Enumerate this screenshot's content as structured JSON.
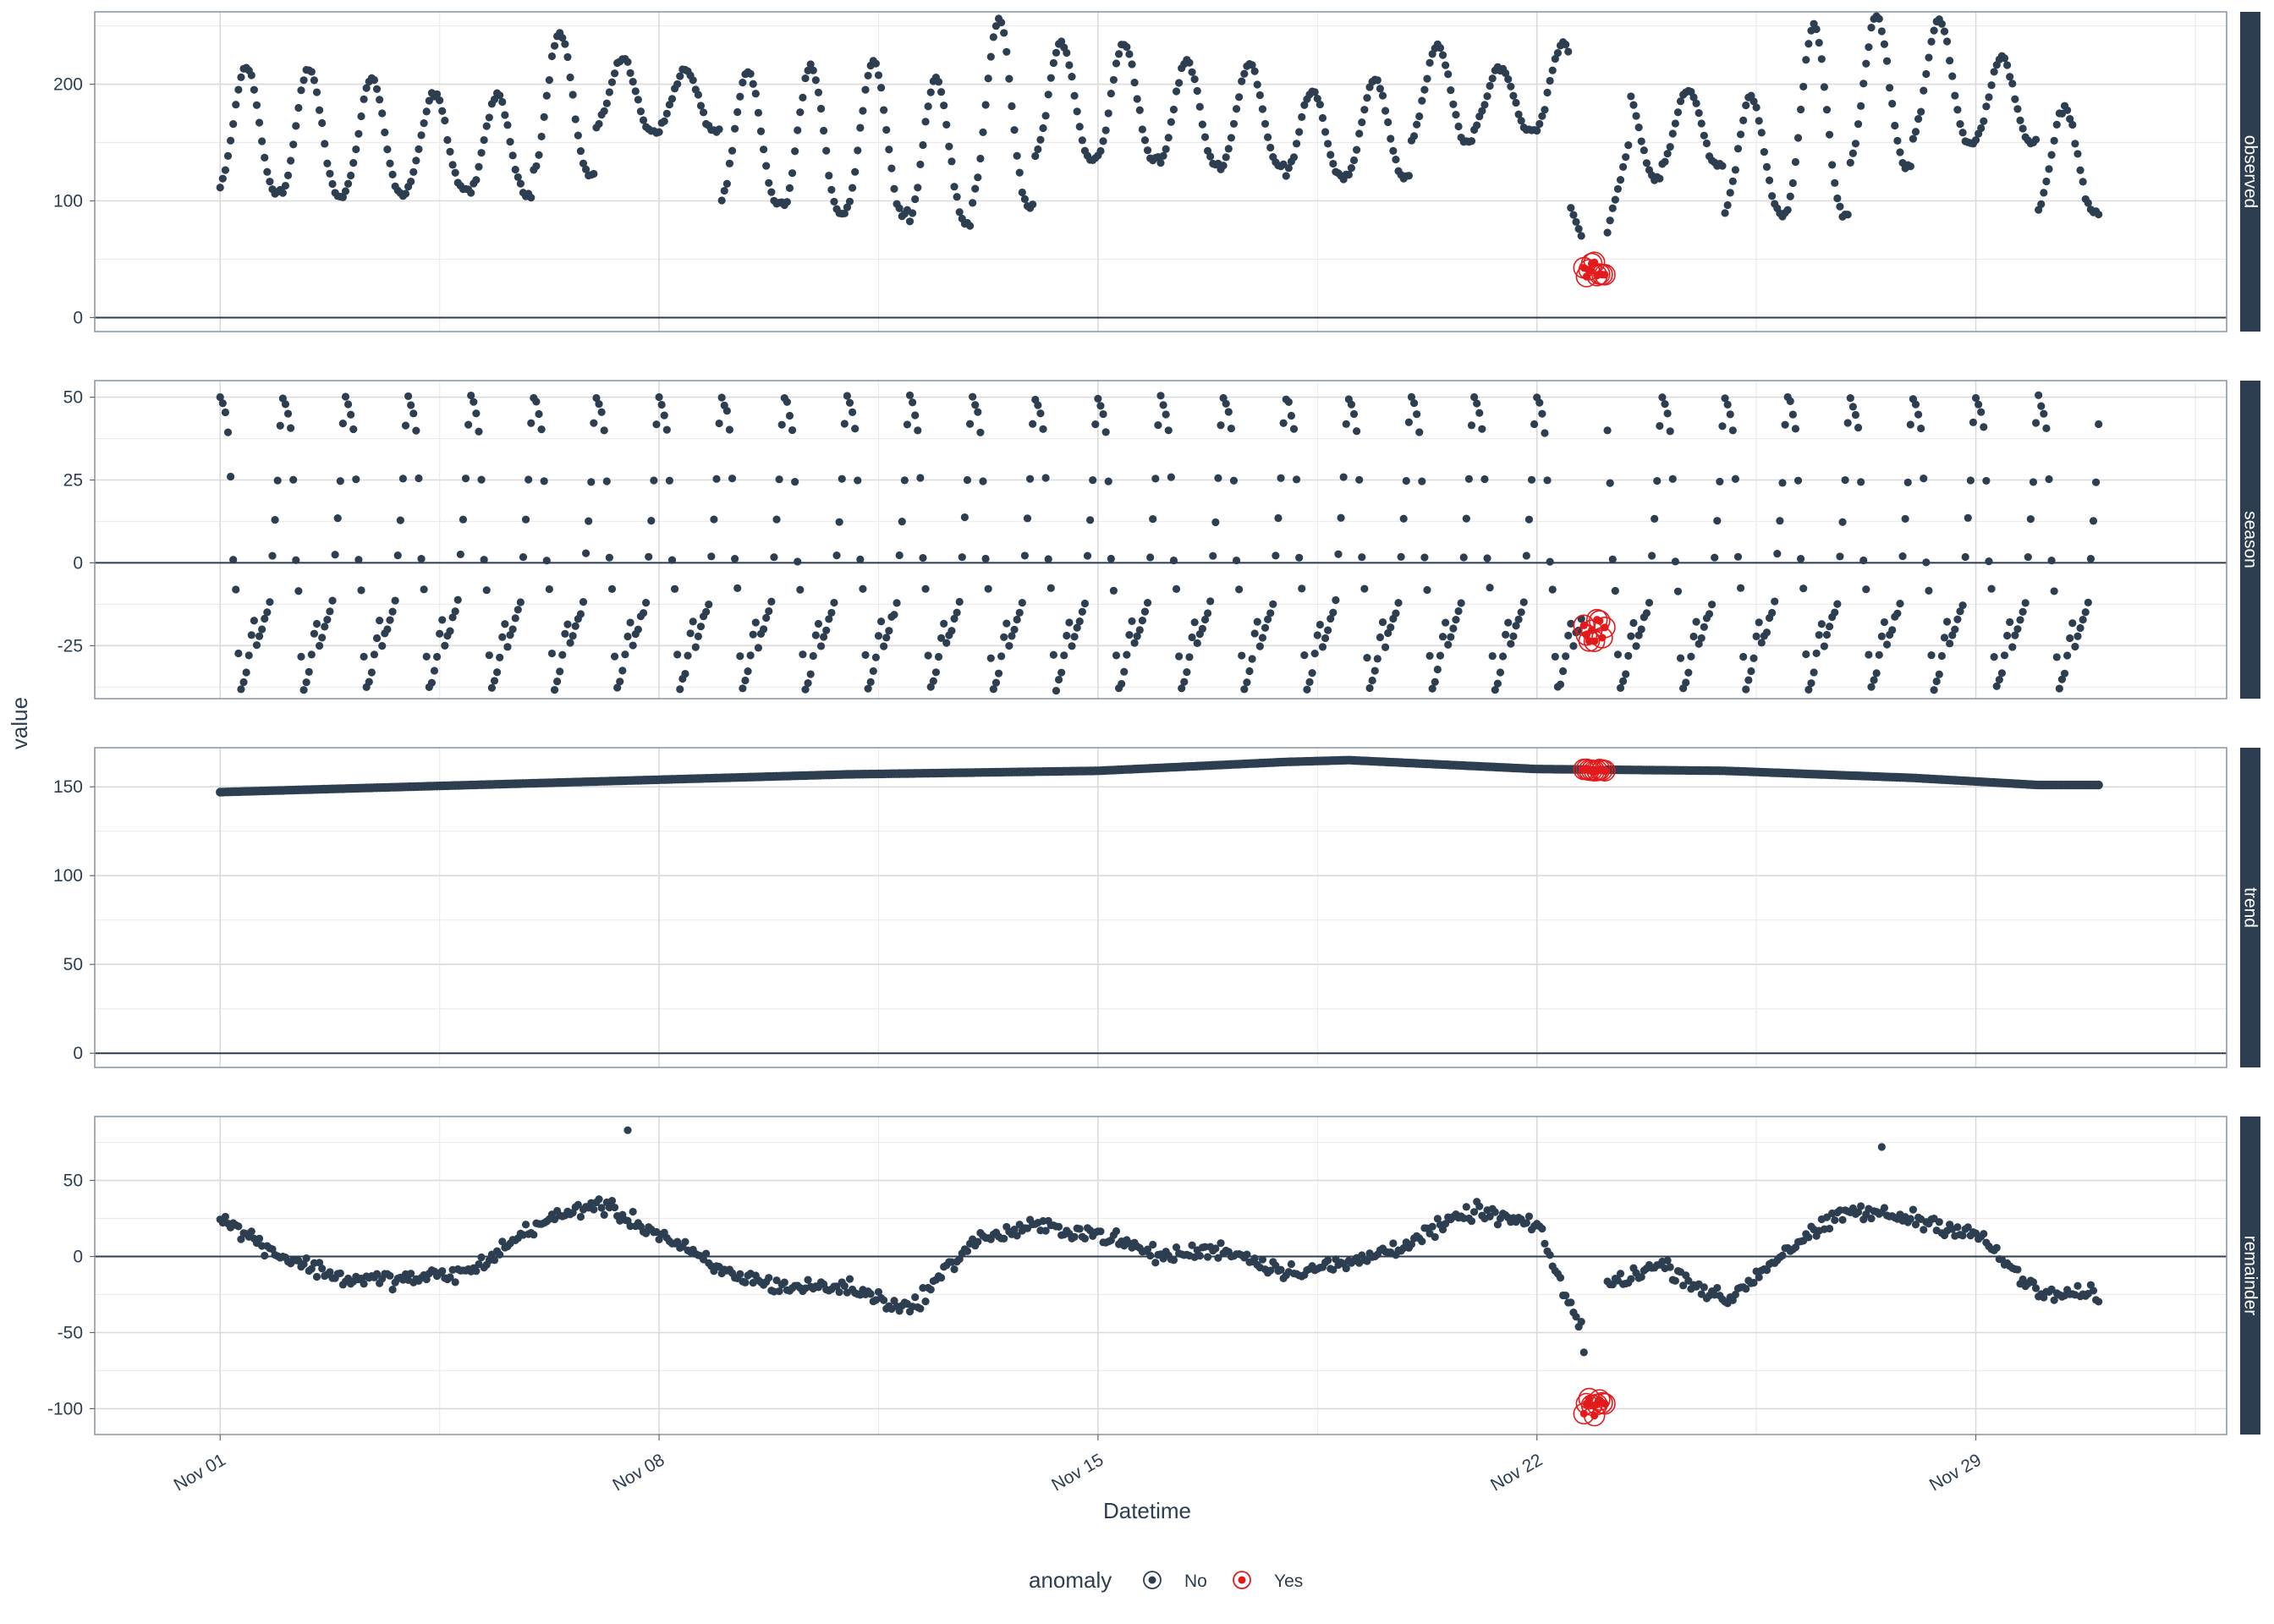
{
  "chart_data": {
    "type": "scatter",
    "layout": "faceted vertical panels sharing x axis",
    "xlabel": "Datetime",
    "ylabel": "value",
    "xlim": [
      "2021-10-30",
      "2021-12-03"
    ],
    "x_ticks": [
      {
        "value": "2021-11-01",
        "label": "Nov 01"
      },
      {
        "value": "2021-11-08",
        "label": "Nov 08"
      },
      {
        "value": "2021-11-15",
        "label": "Nov 15"
      },
      {
        "value": "2021-11-22",
        "label": "Nov 22"
      },
      {
        "value": "2021-11-29",
        "label": "Nov 29"
      }
    ],
    "x_data_range": [
      "2021-11-01T00:00",
      "2021-11-30T23:00"
    ],
    "sampling": "hourly",
    "anomaly_window": [
      "2021-11-22T18:00",
      "2021-11-23T02:00"
    ],
    "legend": {
      "title": "anomaly",
      "position": "bottom",
      "entries": [
        {
          "label": "No",
          "color": "#2c3e50"
        },
        {
          "label": "Yes",
          "color": "#e31a1c"
        }
      ]
    },
    "panels": [
      {
        "name": "observed",
        "ylim": [
          -12,
          262
        ],
        "y_ticks": [
          0,
          100,
          200
        ],
        "key_points": [
          {
            "x": "2021-11-01T02:00",
            "y": 215
          },
          {
            "x": "2021-11-01T12:00",
            "y": 108
          },
          {
            "x": "2021-11-02T18:00",
            "y": 213
          },
          {
            "x": "2021-11-03T06:00",
            "y": 110
          },
          {
            "x": "2021-11-06T12:00",
            "y": 245
          },
          {
            "x": "2021-11-08T06:00",
            "y": 212
          },
          {
            "x": "2021-11-10T18:00",
            "y": 90
          },
          {
            "x": "2021-11-12T18:00",
            "y": 80
          },
          {
            "x": "2021-11-13T12:00",
            "y": 255
          },
          {
            "x": "2021-11-15T18:00",
            "y": 235
          },
          {
            "x": "2021-11-22T12:00",
            "y": 236
          },
          {
            "x": "2021-11-22T16:00",
            "y": 70
          },
          {
            "x": "2021-11-22T21:00",
            "y": 40
          },
          {
            "x": "2021-11-25T18:00",
            "y": 88
          },
          {
            "x": "2021-11-27T02:00",
            "y": 258
          },
          {
            "x": "2021-11-29T12:00",
            "y": 222
          },
          {
            "x": "2021-11-30T12:00",
            "y": 90
          },
          {
            "x": "2021-11-30T23:00",
            "y": 165
          }
        ],
        "daily_peak": [
          215,
          213,
          205,
          192,
          190,
          245,
          222,
          212,
          210,
          215,
          220,
          205,
          255,
          236,
          235,
          220,
          218,
          195,
          205,
          232,
          215,
          236,
          198,
          195,
          190,
          250,
          258,
          255,
          222,
          180
        ],
        "daily_trough": [
          108,
          104,
          105,
          110,
          105,
          122,
          160,
          160,
          98,
          90,
          90,
          80,
          95,
          135,
          135,
          130,
          130,
          120,
          120,
          150,
          160,
          160,
          120,
          130,
          88,
          88,
          130,
          150,
          150,
          90
        ],
        "anomaly_y": [
          35,
          48
        ]
      },
      {
        "name": "season",
        "ylim": [
          -41,
          55
        ],
        "y_ticks": [
          -25,
          0,
          25,
          50
        ],
        "period": "24 hours",
        "cycle_values": [
          50,
          48,
          45,
          40,
          25,
          1,
          -8,
          -28,
          -38,
          -36,
          -33,
          -28,
          -22,
          -18,
          -25,
          -22,
          -20,
          -17,
          -15,
          -12,
          2,
          13,
          25,
          42
        ],
        "anomaly_y": [
          -25,
          -17
        ]
      },
      {
        "name": "trend",
        "ylim": [
          -8,
          172
        ],
        "y_ticks": [
          0,
          50,
          100,
          150
        ],
        "points": [
          {
            "x": "2021-11-01",
            "y": 147
          },
          {
            "x": "2021-11-08",
            "y": 154
          },
          {
            "x": "2021-11-11",
            "y": 157
          },
          {
            "x": "2021-11-15",
            "y": 159
          },
          {
            "x": "2021-11-18",
            "y": 164
          },
          {
            "x": "2021-11-19",
            "y": 165
          },
          {
            "x": "2021-11-22",
            "y": 160
          },
          {
            "x": "2021-11-25",
            "y": 159
          },
          {
            "x": "2021-11-28",
            "y": 155
          },
          {
            "x": "2021-11-30",
            "y": 151
          }
        ],
        "anomaly_y": [
          159,
          160
        ]
      },
      {
        "name": "remainder",
        "ylim": [
          -117,
          92
        ],
        "y_ticks": [
          -100,
          -50,
          0,
          50
        ],
        "level_points": [
          {
            "x": "2021-11-01",
            "y": 25
          },
          {
            "x": "2021-11-02",
            "y": 0
          },
          {
            "x": "2021-11-03",
            "y": -15
          },
          {
            "x": "2021-11-04",
            "y": -15
          },
          {
            "x": "2021-11-05",
            "y": -10
          },
          {
            "x": "2021-11-06",
            "y": 20
          },
          {
            "x": "2021-11-07",
            "y": 35
          },
          {
            "x": "2021-11-08",
            "y": 15
          },
          {
            "x": "2021-11-09",
            "y": -10
          },
          {
            "x": "2021-11-10",
            "y": -20
          },
          {
            "x": "2021-11-11",
            "y": -20
          },
          {
            "x": "2021-11-12",
            "y": -35
          },
          {
            "x": "2021-11-13",
            "y": 10
          },
          {
            "x": "2021-11-14",
            "y": 20
          },
          {
            "x": "2021-11-15",
            "y": 15
          },
          {
            "x": "2021-11-16",
            "y": 0
          },
          {
            "x": "2021-11-17",
            "y": 5
          },
          {
            "x": "2021-11-18",
            "y": -10
          },
          {
            "x": "2021-11-19",
            "y": -5
          },
          {
            "x": "2021-11-20",
            "y": 10
          },
          {
            "x": "2021-11-21",
            "y": 30
          },
          {
            "x": "2021-11-22",
            "y": 20
          },
          {
            "x": "2021-11-22T16:00",
            "y": -45
          },
          {
            "x": "2021-11-23",
            "y": -20
          },
          {
            "x": "2021-11-24",
            "y": -5
          },
          {
            "x": "2021-11-25",
            "y": -30
          },
          {
            "x": "2021-11-26",
            "y": 5
          },
          {
            "x": "2021-11-27",
            "y": 30
          },
          {
            "x": "2021-11-28",
            "y": 25
          },
          {
            "x": "2021-11-29",
            "y": 15
          },
          {
            "x": "2021-11-30",
            "y": -25
          }
        ],
        "extremes": [
          {
            "x": "2021-11-07T12:00",
            "y": 83
          },
          {
            "x": "2021-11-27T12:00",
            "y": 72
          },
          {
            "x": "2021-11-22T18:00",
            "y": -63
          }
        ],
        "anomaly_y": [
          -105,
          -93
        ]
      }
    ]
  }
}
